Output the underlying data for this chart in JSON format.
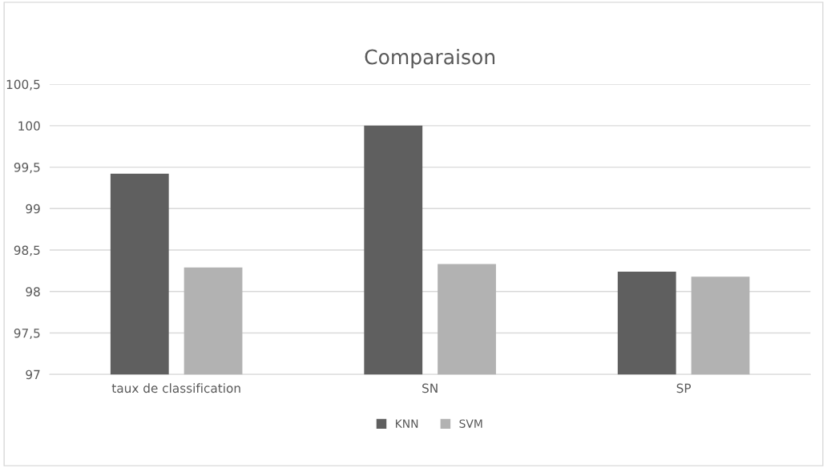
{
  "chart_data": {
    "type": "bar",
    "title": "Comparaison",
    "categories": [
      "taux de classification",
      "SN",
      "SP"
    ],
    "series": [
      {
        "name": "KNN",
        "color": "#5f5f5f",
        "values": [
          99.42,
          100,
          98.24
        ]
      },
      {
        "name": "SVM",
        "color": "#b2b2b2",
        "values": [
          98.29,
          98.33,
          98.18
        ]
      }
    ],
    "ylim": [
      97,
      100.5
    ],
    "yticks": [
      97,
      {
        "value": 97.5,
        "label": "97,5"
      },
      98,
      {
        "value": 98.5,
        "label": "98,5"
      },
      99,
      {
        "value": 99.5,
        "label": "99,5"
      },
      100,
      {
        "value": 100.5,
        "label": "100,5"
      }
    ],
    "grid": "y",
    "legend": "bottom"
  }
}
